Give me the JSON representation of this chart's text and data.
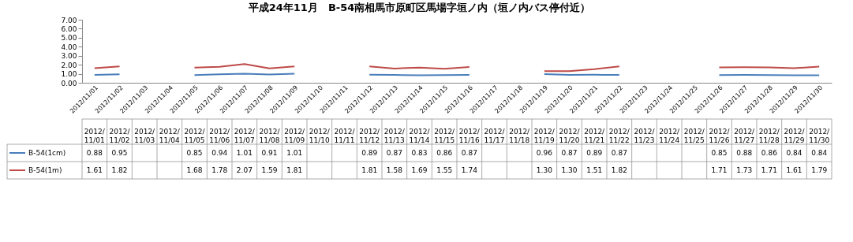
{
  "chart_data": {
    "type": "line",
    "title": "平成24年11月　B-54南相馬市原町区馬場字垣ノ内（垣ノ内バス停付近）",
    "categories": [
      "2012/11/01",
      "2012/11/02",
      "2012/11/03",
      "2012/11/04",
      "2012/11/05",
      "2012/11/06",
      "2012/11/07",
      "2012/11/08",
      "2012/11/09",
      "2012/11/10",
      "2012/11/11",
      "2012/11/12",
      "2012/11/13",
      "2012/11/14",
      "2012/11/15",
      "2012/11/16",
      "2012/11/17",
      "2012/11/18",
      "2012/11/19",
      "2012/11/20",
      "2012/11/21",
      "2012/11/22",
      "2012/11/23",
      "2012/11/24",
      "2012/11/25",
      "2012/11/26",
      "2012/11/27",
      "2012/11/28",
      "2012/11/29",
      "2012/11/30"
    ],
    "series": [
      {
        "name": "B-54(1cm)",
        "color": "#4a7ebb",
        "values": [
          0.88,
          0.95,
          null,
          null,
          0.85,
          0.94,
          1.01,
          0.91,
          1.01,
          null,
          null,
          0.89,
          0.87,
          0.83,
          0.86,
          0.87,
          null,
          null,
          0.96,
          0.87,
          0.89,
          0.87,
          null,
          null,
          null,
          0.85,
          0.88,
          0.86,
          0.84,
          0.84
        ],
        "value_labels": [
          "0.88",
          "0.95",
          null,
          null,
          "0.85",
          "0.94",
          "1.01",
          "0.91",
          "1.01",
          null,
          null,
          "0.89",
          "0.87",
          "0.83",
          "0.86",
          "0.87",
          null,
          null,
          "0.96",
          "0.87",
          "0.89",
          "0.87",
          null,
          null,
          null,
          "0.85",
          "0.88",
          "0.86",
          "0.84",
          "0.84"
        ]
      },
      {
        "name": "B-54(1m)",
        "color": "#be4b48",
        "values": [
          1.61,
          1.82,
          null,
          null,
          1.68,
          1.78,
          2.07,
          1.59,
          1.81,
          null,
          null,
          1.81,
          1.58,
          1.69,
          1.55,
          1.74,
          null,
          null,
          1.3,
          1.3,
          1.51,
          1.82,
          null,
          null,
          null,
          1.71,
          1.73,
          1.71,
          1.61,
          1.79
        ],
        "value_labels": [
          "1.61",
          "1.82",
          null,
          null,
          "1.68",
          "1.78",
          "2.07",
          "1.59",
          "1.81",
          null,
          null,
          "1.81",
          "1.58",
          "1.69",
          "1.55",
          "1.74",
          null,
          null,
          "1.30",
          "1.30",
          "1.51",
          "1.82",
          null,
          null,
          null,
          "1.71",
          "1.73",
          "1.71",
          "1.61",
          "1.79"
        ]
      }
    ],
    "ylim": [
      0,
      7
    ],
    "yticks": [
      {
        "value": 0,
        "label": "0.00"
      },
      {
        "value": 1,
        "label": "1.00"
      },
      {
        "value": 2,
        "label": "2.00"
      },
      {
        "value": 3,
        "label": "3.00"
      },
      {
        "value": 4,
        "label": "4.00"
      },
      {
        "value": 5,
        "label": "5.00"
      },
      {
        "value": 6,
        "label": "6.00"
      },
      {
        "value": 7,
        "label": "7.00"
      }
    ],
    "grid": false,
    "marker": "none",
    "line_style": "solid",
    "legend": "bottom left"
  }
}
